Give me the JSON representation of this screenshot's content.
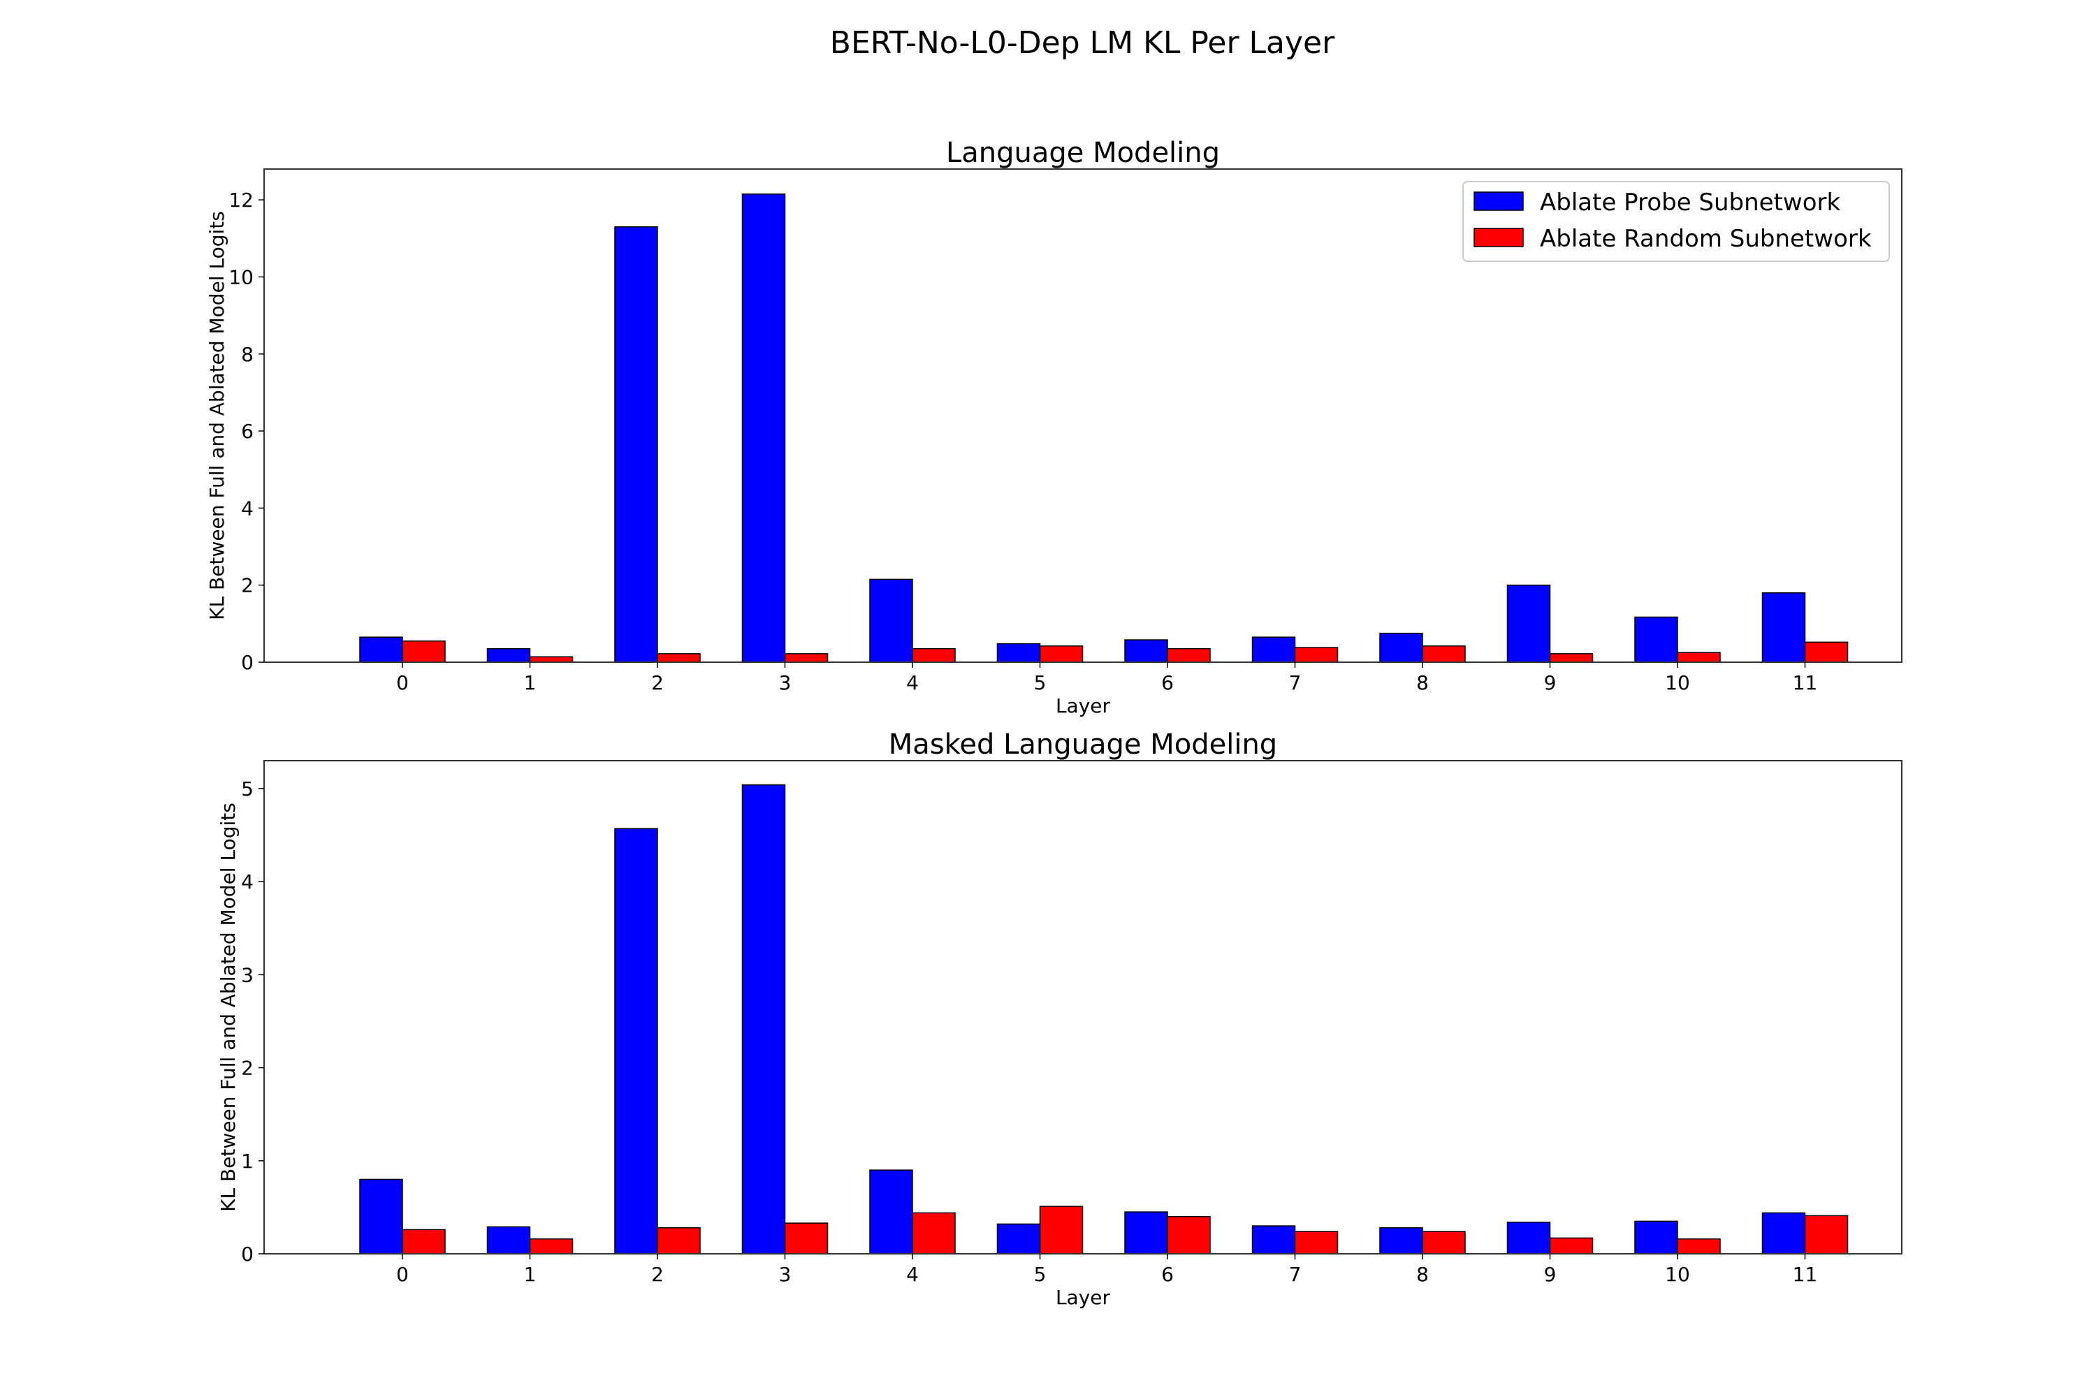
{
  "figure": {
    "title": "BERT-No-L0-Dep LM KL Per Layer"
  },
  "colors": {
    "probe": "#0000ff",
    "random": "#ff0000",
    "edge": "#000000",
    "frame": "#333333"
  },
  "legend": {
    "placement": "top-right",
    "entries": [
      "Ablate Probe Subnetwork",
      "Ablate Random Subnetwork"
    ]
  },
  "chart_data": [
    {
      "type": "bar",
      "title": "Language Modeling",
      "xlabel": "Layer",
      "ylabel": "KL Between Full and Ablated Model Logits",
      "categories": [
        "0",
        "1",
        "2",
        "3",
        "4",
        "5",
        "6",
        "7",
        "8",
        "9",
        "10",
        "11"
      ],
      "yticks": [
        "0",
        "2",
        "4",
        "6",
        "8",
        "10",
        "12"
      ],
      "ylim": [
        0,
        12.8
      ],
      "grid": false,
      "legend": "top-right",
      "series": [
        {
          "name": "Ablate Probe Subnetwork",
          "values": [
            0.65,
            0.35,
            11.3,
            12.15,
            2.15,
            0.48,
            0.58,
            0.65,
            0.75,
            2.0,
            1.17,
            1.8
          ]
        },
        {
          "name": "Ablate Random Subnetwork",
          "values": [
            0.55,
            0.14,
            0.22,
            0.22,
            0.35,
            0.42,
            0.35,
            0.38,
            0.42,
            0.22,
            0.25,
            0.52
          ]
        }
      ]
    },
    {
      "type": "bar",
      "title": "Masked Language Modeling",
      "xlabel": "Layer",
      "ylabel": "KL Between Full and Ablated Model Logits",
      "categories": [
        "0",
        "1",
        "2",
        "3",
        "4",
        "5",
        "6",
        "7",
        "8",
        "9",
        "10",
        "11"
      ],
      "yticks": [
        "0",
        "1",
        "2",
        "3",
        "4",
        "5"
      ],
      "ylim": [
        0,
        5.3
      ],
      "grid": false,
      "legend": "none",
      "series": [
        {
          "name": "Ablate Probe Subnetwork",
          "values": [
            0.8,
            0.29,
            4.57,
            5.04,
            0.9,
            0.32,
            0.45,
            0.3,
            0.28,
            0.34,
            0.35,
            0.44
          ]
        },
        {
          "name": "Ablate Random Subnetwork",
          "values": [
            0.26,
            0.16,
            0.28,
            0.33,
            0.44,
            0.51,
            0.4,
            0.24,
            0.24,
            0.17,
            0.16,
            0.41
          ]
        }
      ]
    }
  ]
}
